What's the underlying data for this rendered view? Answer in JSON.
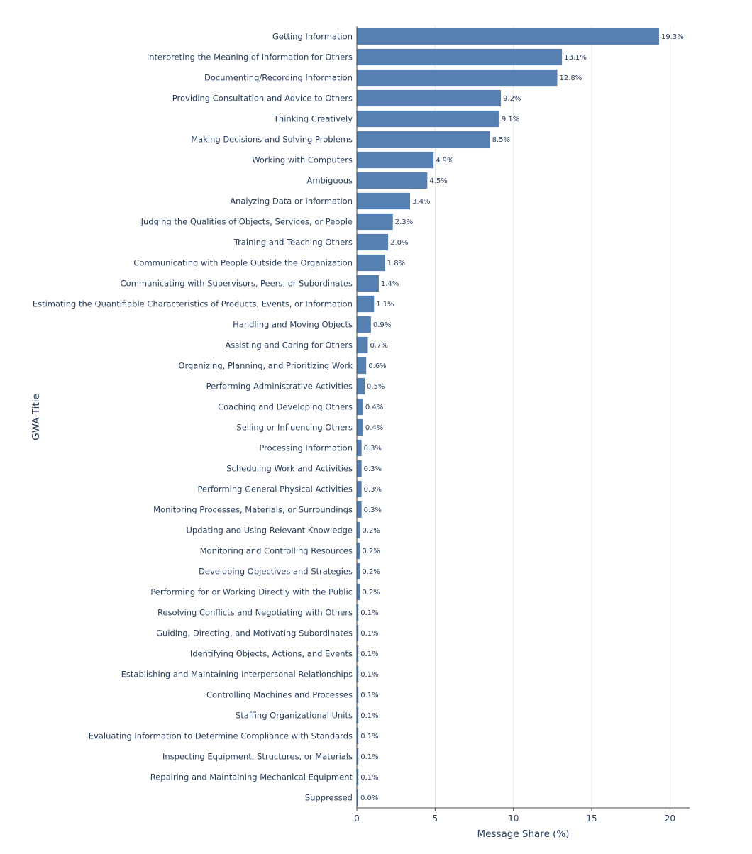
{
  "chart_data": {
    "type": "bar",
    "orientation": "horizontal",
    "xlabel": "Message Share (%)",
    "ylabel": "GWA Title",
    "xlim": [
      0,
      21.25
    ],
    "xticks": [
      0,
      5,
      10,
      15,
      20
    ],
    "grid": true,
    "bar_color": "#5580b1",
    "categories": [
      "Getting Information",
      "Interpreting the Meaning of Information for Others",
      "Documenting/Recording Information",
      "Providing Consultation and Advice to Others",
      "Thinking Creatively",
      "Making Decisions and Solving Problems",
      "Working with Computers",
      "Ambiguous",
      "Analyzing Data or Information",
      "Judging the Qualities of Objects, Services, or People",
      "Training and Teaching Others",
      "Communicating with People Outside the Organization",
      "Communicating with Supervisors, Peers, or Subordinates",
      "Estimating the Quantifiable Characteristics of Products, Events, or Information",
      "Handling and Moving Objects",
      "Assisting and Caring for Others",
      "Organizing, Planning, and Prioritizing Work",
      "Performing Administrative Activities",
      "Coaching and Developing Others",
      "Selling or Influencing Others",
      "Processing Information",
      "Scheduling Work and Activities",
      "Performing General Physical Activities",
      "Monitoring Processes, Materials, or Surroundings",
      "Updating and Using Relevant Knowledge",
      "Monitoring and Controlling Resources",
      "Developing Objectives and Strategies",
      "Performing for or Working Directly with the Public",
      "Resolving Conflicts and Negotiating with Others",
      "Guiding, Directing, and Motivating Subordinates",
      "Identifying Objects, Actions, and Events",
      "Establishing and Maintaining Interpersonal Relationships",
      "Controlling Machines and Processes",
      "Staffing Organizational Units",
      "Evaluating Information to Determine Compliance with Standards",
      "Inspecting Equipment, Structures, or Materials",
      "Repairing and Maintaining Mechanical Equipment",
      "Suppressed"
    ],
    "values": [
      19.3,
      13.1,
      12.8,
      9.2,
      9.1,
      8.5,
      4.9,
      4.5,
      3.4,
      2.3,
      2.0,
      1.8,
      1.4,
      1.1,
      0.9,
      0.7,
      0.6,
      0.5,
      0.4,
      0.4,
      0.3,
      0.3,
      0.3,
      0.3,
      0.2,
      0.2,
      0.2,
      0.2,
      0.1,
      0.1,
      0.1,
      0.1,
      0.1,
      0.1,
      0.1,
      0.1,
      0.1,
      0.0
    ],
    "value_labels": [
      "19.3%",
      "13.1%",
      "12.8%",
      "9.2%",
      "9.1%",
      "8.5%",
      "4.9%",
      "4.5%",
      "3.4%",
      "2.3%",
      "2.0%",
      "1.8%",
      "1.4%",
      "1.1%",
      "0.9%",
      "0.7%",
      "0.6%",
      "0.5%",
      "0.4%",
      "0.4%",
      "0.3%",
      "0.3%",
      "0.3%",
      "0.3%",
      "0.2%",
      "0.2%",
      "0.2%",
      "0.2%",
      "0.1%",
      "0.1%",
      "0.1%",
      "0.1%",
      "0.1%",
      "0.1%",
      "0.1%",
      "0.1%",
      "0.1%",
      "0.0%"
    ]
  }
}
